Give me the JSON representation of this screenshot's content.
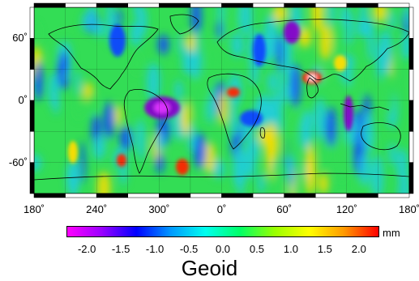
{
  "map": {
    "projection": "equirectangular",
    "lon_range": [
      180,
      540
    ],
    "lat_range": [
      -90,
      90
    ],
    "x_ticks": [
      {
        "value": 180,
        "label": "180˚"
      },
      {
        "value": 240,
        "label": "240˚"
      },
      {
        "value": 300,
        "label": "300˚"
      },
      {
        "value": 360,
        "label": "0˚"
      },
      {
        "value": 420,
        "label": "60˚"
      },
      {
        "value": 480,
        "label": "120˚"
      },
      {
        "value": 540,
        "label": "180˚"
      }
    ],
    "y_ticks": [
      {
        "value": 60,
        "label": "60˚"
      },
      {
        "value": 0,
        "label": "0˚"
      },
      {
        "value": -60,
        "label": "-60˚"
      }
    ],
    "grid": true,
    "field_colors": {
      "background": "#33dd55",
      "low": "#8800cc",
      "mid_low": "#1144ff",
      "mid": "#22ccdd",
      "high": "#ffdd00",
      "max": "#ff2200"
    }
  },
  "colorbar": {
    "unit": "mm",
    "title": "Geoid",
    "range": [
      -2.3,
      2.3
    ],
    "ticks": [
      {
        "value": -2.0,
        "label": "-2.0"
      },
      {
        "value": -1.5,
        "label": "-1.5"
      },
      {
        "value": -1.0,
        "label": "-1.0"
      },
      {
        "value": -0.5,
        "label": "-0.5"
      },
      {
        "value": 0.0,
        "label": "0.0"
      },
      {
        "value": 0.5,
        "label": "0.5"
      },
      {
        "value": 1.0,
        "label": "1.0"
      },
      {
        "value": 1.5,
        "label": "1.5"
      },
      {
        "value": 2.0,
        "label": "2.0"
      }
    ],
    "stops": [
      "#ff00ff",
      "#9900ff",
      "#0000ff",
      "#0099ff",
      "#00ffee",
      "#00ff66",
      "#99ff00",
      "#ffff00",
      "#ff9900",
      "#ff0000"
    ]
  }
}
